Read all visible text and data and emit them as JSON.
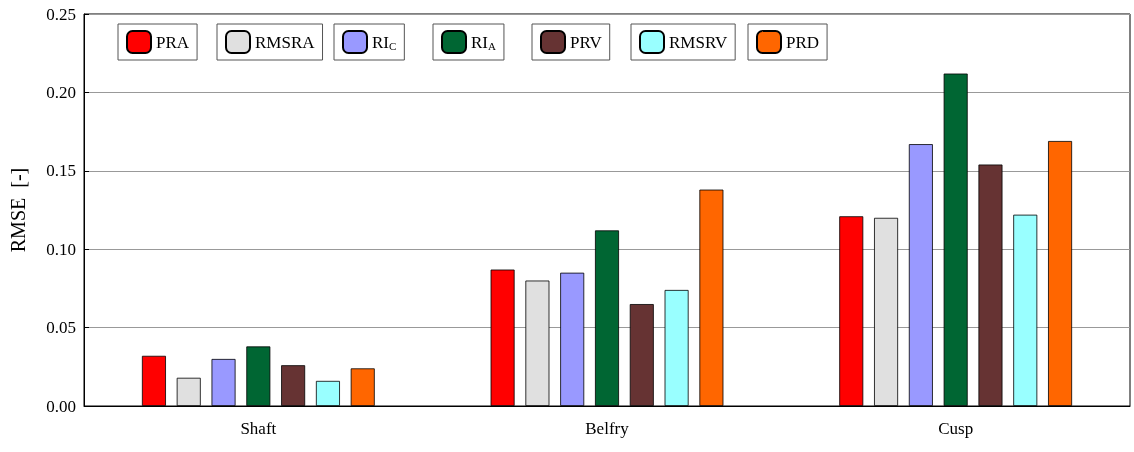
{
  "chart_data": {
    "type": "bar",
    "ylabel": "RMSE  [-]",
    "categories": [
      "Shaft",
      "Belfry",
      "Cusp"
    ],
    "series": [
      {
        "name": "PRA",
        "color": "#ff0000",
        "values": [
          0.032,
          0.087,
          0.121
        ]
      },
      {
        "name": "RMSRA",
        "color": "#e0e0e0",
        "values": [
          0.018,
          0.08,
          0.12
        ]
      },
      {
        "name": "RI$_{C}$",
        "color": "#9999ff",
        "values": [
          0.03,
          0.085,
          0.167
        ]
      },
      {
        "name": "RI$_{A}$",
        "color": "#006633",
        "values": [
          0.038,
          0.112,
          0.212
        ]
      },
      {
        "name": "PRV",
        "color": "#663333",
        "values": [
          0.026,
          0.065,
          0.154
        ]
      },
      {
        "name": "RMSRV",
        "color": "#99ffff",
        "values": [
          0.016,
          0.074,
          0.122
        ]
      },
      {
        "name": "PRD",
        "color": "#ff6600",
        "values": [
          0.024,
          0.138,
          0.169
        ]
      }
    ],
    "ylim": [
      0,
      0.25
    ],
    "yticks": [
      {
        "value": 0,
        "label": "0.00"
      },
      {
        "value": 0.05,
        "label": "0.05"
      },
      {
        "value": 0.1,
        "label": "0.10"
      },
      {
        "value": 0.15,
        "label": "0.15"
      },
      {
        "value": 0.2,
        "label": "0.20"
      },
      {
        "value": 0.25,
        "label": "0.25"
      }
    ],
    "grid": "y",
    "legend": "top left"
  }
}
